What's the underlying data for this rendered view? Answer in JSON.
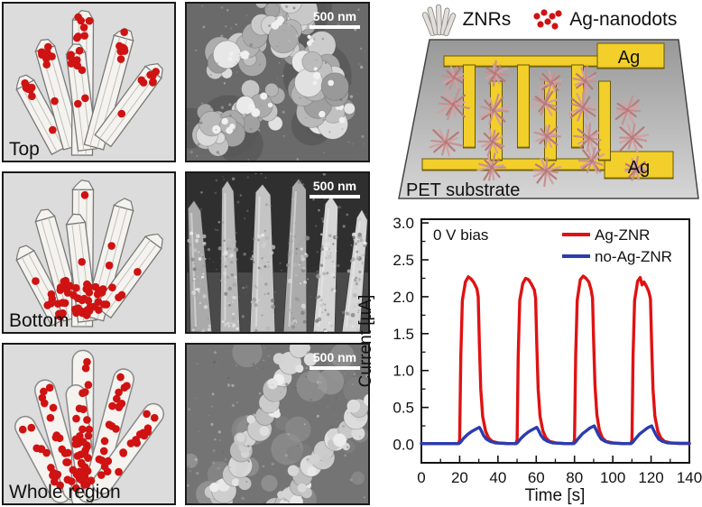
{
  "figure": {
    "panels_left": [
      {
        "label": "Top",
        "mode": "top"
      },
      {
        "label": "Bottom",
        "mode": "bottom"
      },
      {
        "label": "Whole region",
        "mode": "whole"
      }
    ],
    "sem_images": [
      {
        "scale_bar": "500 nm",
        "style": "clusters"
      },
      {
        "scale_bar": "500 nm",
        "style": "rods"
      },
      {
        "scale_bar": "500 nm",
        "style": "beaded"
      }
    ],
    "top_legend": [
      {
        "label": "ZNRs",
        "icon": "znr-bundle-icon"
      },
      {
        "label": "Ag-nanodots",
        "icon": "ag-dots-icon"
      }
    ],
    "device": {
      "electrode_label_top": "Ag",
      "electrode_label_bottom": "Ag",
      "substrate_label": "PET substrate"
    }
  },
  "chart_data": {
    "type": "line",
    "title": "",
    "xlabel": "Time [s]",
    "ylabel": "Current [µA]",
    "annotation": "0 V bias",
    "xlim": [
      0,
      140
    ],
    "ylim": [
      -0.25,
      3.05
    ],
    "xticks": [
      0,
      20,
      40,
      60,
      80,
      100,
      120,
      140
    ],
    "yticks": [
      0.0,
      0.5,
      1.0,
      1.5,
      2.0,
      2.5,
      3.0
    ],
    "grid": false,
    "legend_position": "top-right",
    "series": [
      {
        "name": "Ag-ZNR",
        "color": "#e01212",
        "points": [
          [
            0,
            0.01
          ],
          [
            10,
            0.01
          ],
          [
            19.4,
            0.01
          ],
          [
            20,
            0.06
          ],
          [
            20.6,
            1.2
          ],
          [
            21.4,
            1.95
          ],
          [
            23,
            2.2
          ],
          [
            24.5,
            2.27
          ],
          [
            26,
            2.24
          ],
          [
            27.5,
            2.19
          ],
          [
            29,
            2.11
          ],
          [
            29.7,
            2.0
          ],
          [
            30.3,
            1.35
          ],
          [
            31,
            0.75
          ],
          [
            32,
            0.38
          ],
          [
            33.5,
            0.18
          ],
          [
            35,
            0.09
          ],
          [
            37,
            0.04
          ],
          [
            40,
            0.02
          ],
          [
            45,
            0.01
          ],
          [
            49.4,
            0.01
          ],
          [
            50,
            0.06
          ],
          [
            50.6,
            1.2
          ],
          [
            51.4,
            1.95
          ],
          [
            53,
            2.18
          ],
          [
            54.5,
            2.25
          ],
          [
            56,
            2.23
          ],
          [
            57.5,
            2.17
          ],
          [
            59,
            2.09
          ],
          [
            59.7,
            1.98
          ],
          [
            60.3,
            1.35
          ],
          [
            61,
            0.75
          ],
          [
            62,
            0.38
          ],
          [
            63.5,
            0.18
          ],
          [
            65,
            0.09
          ],
          [
            67,
            0.04
          ],
          [
            70,
            0.02
          ],
          [
            75,
            0.01
          ],
          [
            79.4,
            0.01
          ],
          [
            80,
            0.06
          ],
          [
            80.6,
            1.2
          ],
          [
            81.4,
            1.95
          ],
          [
            83,
            2.23
          ],
          [
            84.5,
            2.28
          ],
          [
            86,
            2.25
          ],
          [
            87.5,
            2.2
          ],
          [
            88.6,
            2.1
          ],
          [
            89.4,
            1.98
          ],
          [
            90,
            1.4
          ],
          [
            90.7,
            0.8
          ],
          [
            91.7,
            0.4
          ],
          [
            93,
            0.19
          ],
          [
            94.5,
            0.09
          ],
          [
            96.5,
            0.04
          ],
          [
            100,
            0.02
          ],
          [
            105,
            0.01
          ],
          [
            109.4,
            0.01
          ],
          [
            110,
            0.06
          ],
          [
            110.6,
            1.2
          ],
          [
            111.4,
            1.95
          ],
          [
            113,
            2.21
          ],
          [
            114.3,
            2.26
          ],
          [
            115.3,
            2.16
          ],
          [
            116.3,
            2.2
          ],
          [
            117.6,
            2.14
          ],
          [
            118.8,
            2.07
          ],
          [
            119.7,
            1.97
          ],
          [
            120.3,
            1.35
          ],
          [
            121,
            0.75
          ],
          [
            122,
            0.38
          ],
          [
            123.5,
            0.18
          ],
          [
            125,
            0.09
          ],
          [
            127,
            0.04
          ],
          [
            130,
            0.02
          ],
          [
            135,
            0.01
          ],
          [
            140,
            0.01
          ]
        ]
      },
      {
        "name": "no-Ag-ZNR",
        "color": "#2b3cb0",
        "points": [
          [
            0,
            0.01
          ],
          [
            10,
            0.01
          ],
          [
            19.6,
            0.01
          ],
          [
            20.5,
            0.03
          ],
          [
            22,
            0.08
          ],
          [
            24,
            0.13
          ],
          [
            26,
            0.17
          ],
          [
            28,
            0.2
          ],
          [
            29.5,
            0.22
          ],
          [
            30.3,
            0.23
          ],
          [
            31.2,
            0.19
          ],
          [
            32.5,
            0.12
          ],
          [
            34,
            0.07
          ],
          [
            36,
            0.04
          ],
          [
            38.5,
            0.02
          ],
          [
            45,
            0.01
          ],
          [
            49.6,
            0.01
          ],
          [
            50.5,
            0.03
          ],
          [
            52,
            0.08
          ],
          [
            54,
            0.13
          ],
          [
            56,
            0.17
          ],
          [
            58,
            0.2
          ],
          [
            59.5,
            0.22
          ],
          [
            60.3,
            0.23
          ],
          [
            61.2,
            0.19
          ],
          [
            62.5,
            0.12
          ],
          [
            64,
            0.07
          ],
          [
            66,
            0.04
          ],
          [
            68.5,
            0.02
          ],
          [
            75,
            0.01
          ],
          [
            79.6,
            0.01
          ],
          [
            80.5,
            0.03
          ],
          [
            82,
            0.08
          ],
          [
            84,
            0.14
          ],
          [
            86,
            0.18
          ],
          [
            88,
            0.22
          ],
          [
            89.5,
            0.24
          ],
          [
            90.3,
            0.25
          ],
          [
            91.2,
            0.2
          ],
          [
            92.5,
            0.13
          ],
          [
            94,
            0.07
          ],
          [
            96,
            0.04
          ],
          [
            98.5,
            0.02
          ],
          [
            105,
            0.01
          ],
          [
            109.6,
            0.01
          ],
          [
            110.5,
            0.03
          ],
          [
            112,
            0.08
          ],
          [
            114,
            0.14
          ],
          [
            116,
            0.18
          ],
          [
            118,
            0.22
          ],
          [
            119.5,
            0.24
          ],
          [
            120.3,
            0.25
          ],
          [
            121.2,
            0.2
          ],
          [
            122.5,
            0.13
          ],
          [
            124,
            0.07
          ],
          [
            126,
            0.04
          ],
          [
            128.5,
            0.02
          ],
          [
            135,
            0.015
          ],
          [
            140,
            0.015
          ]
        ]
      }
    ]
  },
  "colors": {
    "ag_dot": "#cf1212",
    "rod_fill": "#f5f3ef",
    "rod_stroke": "#787878",
    "panel_bg": "#dcdcdc",
    "electrode": "#f2cf2a",
    "electrode_edge": "#6b5a00",
    "star": "#c48c8c",
    "substrate_top": "#989898",
    "substrate_bottom": "#d6d6d6",
    "axis": "#111111"
  }
}
